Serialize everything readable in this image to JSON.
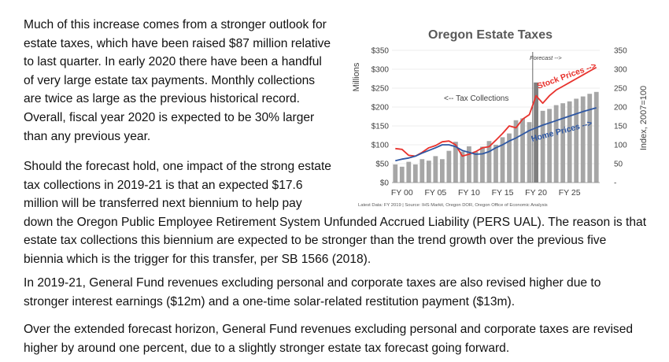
{
  "paragraphs": [
    {
      "lines": [
        "Much of this increase comes from a stronger outlook for",
        "estate taxes, which have been raised $87 million relative",
        "to last quarter. In early 2020 there have been a handful",
        "of very large estate tax payments. Monthly collections",
        "are twice as large as the previous historical record.",
        "Overall, fiscal year 2020 is expected to be 30% larger",
        "than any previous year."
      ]
    },
    {
      "lines": [
        "Should the forecast hold, one impact of the strong estate",
        "tax collections in 2019-21 is that an expected $17.6",
        "million will be transferred next biennium to help pay",
        "down the Oregon Public Employee Retirement System Unfunded Accrued Liability (PERS UAL). The reason is that",
        "estate tax collections this biennium are expected to be stronger than the trend growth over the previous five",
        "biennia which is the trigger for this transfer, per SB 1566 (2018)."
      ]
    },
    {
      "lines": [
        "In 2019-21, General Fund revenues excluding personal and corporate taxes are also revised higher due to",
        "stronger interest earnings ($12m) and a one-time solar-related restitution payment ($13m)."
      ]
    },
    {
      "lines": [
        "Over the extended forecast horizon, General Fund revenues excluding personal and corporate taxes are revised",
        "higher by around one percent, due to a slightly stronger estate tax forecast going forward."
      ]
    }
  ],
  "chart_data": {
    "type": "bar",
    "title": "Oregon Estate Taxes",
    "ylabel": "Millions",
    "ylabel_right": "Index, 2007=100",
    "ylim": [
      0,
      350
    ],
    "ylim_right": [
      0,
      350
    ],
    "yticks": [
      "$0",
      "$50",
      "$100",
      "$150",
      "$200",
      "$250",
      "$300",
      "$350"
    ],
    "yticks_right": [
      "-",
      "50",
      "100",
      "150",
      "200",
      "250",
      "300",
      "350"
    ],
    "xtick_labels": [
      "FY 00",
      "FY 05",
      "FY 10",
      "FY 15",
      "FY 20",
      "FY 25"
    ],
    "x": [
      1999,
      2000,
      2001,
      2002,
      2003,
      2004,
      2005,
      2006,
      2007,
      2008,
      2009,
      2010,
      2011,
      2012,
      2013,
      2014,
      2015,
      2016,
      2017,
      2018,
      2019,
      2020,
      2021,
      2022,
      2023,
      2024,
      2025,
      2026,
      2027,
      2028,
      2029
    ],
    "series": [
      {
        "name": "Tax Collections",
        "color": "#a6a6a6",
        "highlight_index": 21,
        "highlight_color": "#7f7f7f",
        "values": [
          48,
          42,
          55,
          48,
          62,
          58,
          70,
          62,
          84,
          108,
          82,
          96,
          82,
          95,
          110,
          100,
          120,
          130,
          165,
          170,
          160,
          265,
          190,
          195,
          205,
          210,
          215,
          222,
          228,
          235,
          240
        ]
      },
      {
        "name": "Stock Prices",
        "color": "#e8322d",
        "values": [
          90,
          88,
          72,
          70,
          80,
          92,
          98,
          108,
          110,
          100,
          70,
          75,
          82,
          92,
          95,
          112,
          130,
          150,
          145,
          168,
          180,
          230,
          210,
          230,
          245,
          255,
          265,
          275,
          285,
          295,
          305
        ]
      },
      {
        "name": "Home Prices",
        "color": "#2e57a3",
        "values": [
          58,
          62,
          65,
          70,
          78,
          85,
          92,
          100,
          100,
          95,
          85,
          80,
          75,
          76,
          82,
          92,
          100,
          110,
          118,
          128,
          138,
          145,
          152,
          158,
          164,
          170,
          176,
          182,
          188,
          193,
          198
        ]
      }
    ],
    "annotations": [
      "Forecast -->",
      "<-- Tax Collections",
      "Stock Prices -->",
      "Home Prices -->"
    ],
    "forecast_start_x": 2020,
    "source": "Latest Data: FY 2019  |  Source: IHS Markit, Oregon DOR, Oregon Office of Economic Analysis"
  }
}
